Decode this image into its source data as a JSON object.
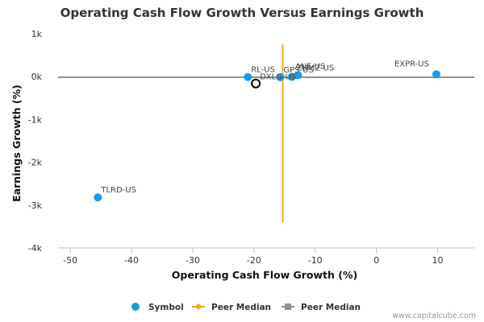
{
  "chart_data": {
    "type": "scatter",
    "title": "Operating Cash Flow Growth Versus Earnings Growth",
    "xlabel": "Operating Cash Flow Growth (%)",
    "ylabel": "Earnings Growth (%)",
    "xlim": [
      -52,
      16
    ],
    "ylim": [
      -4000,
      1000
    ],
    "x_ticks": [
      -50,
      -40,
      -30,
      -20,
      -10,
      0,
      10
    ],
    "y_ticks": [
      1000,
      0,
      -1000,
      -2000,
      -3000,
      -4000
    ],
    "y_tick_labels": [
      "1k",
      "0k",
      "-1k",
      "-2k",
      "-3k",
      "-4k"
    ],
    "grid": false,
    "legend_position": "bottom",
    "symbol_color": "#1a9be6",
    "highlight_color": "#000000",
    "peer_median_x_color": "#f5a623",
    "peer_median_y_color": "#8c9099",
    "peer_median": {
      "x": -15.3,
      "y": -15
    },
    "points": [
      {
        "label": "EXPR-US",
        "x": 9.8,
        "y": 55
      },
      {
        "label": "TLRD-US",
        "x": -45.5,
        "y": -2820
      },
      {
        "label": "RL-US",
        "x": -21,
        "y": -10
      },
      {
        "label": "GPS-US",
        "x": -15.7,
        "y": -15
      },
      {
        "label": "ANF-US",
        "x": -13.8,
        "y": -5
      },
      {
        "label": "ZUMZ-US",
        "x": -12.8,
        "y": 35
      },
      {
        "label": "DXLG-US",
        "x": -19.7,
        "y": -160,
        "highlight": true
      }
    ],
    "legend": [
      {
        "name": "Symbol",
        "kind": "dot"
      },
      {
        "name": "Peer Median",
        "kind": "orange-line"
      },
      {
        "name": "Peer Median",
        "kind": "gray-square"
      }
    ]
  },
  "credit": "www.capitalcube.com"
}
